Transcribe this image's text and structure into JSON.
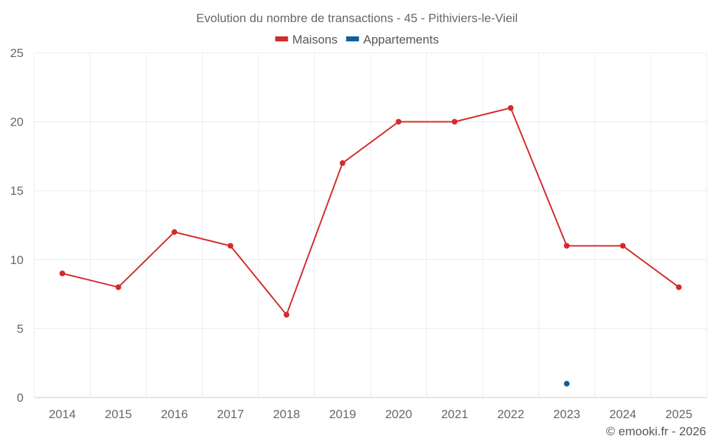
{
  "chart_data": {
    "type": "line",
    "title": "Evolution du nombre de transactions - 45 - Pithiviers-le-Vieil",
    "categories": [
      "2014",
      "2015",
      "2016",
      "2017",
      "2018",
      "2019",
      "2020",
      "2021",
      "2022",
      "2023",
      "2024",
      "2025"
    ],
    "series": [
      {
        "name": "Maisons",
        "color": "#d32a2a",
        "values": [
          9,
          8,
          12,
          11,
          6,
          17,
          20,
          20,
          21,
          11,
          11,
          8
        ]
      },
      {
        "name": "Appartements",
        "color": "#0f5f9e",
        "values": [
          null,
          null,
          null,
          null,
          null,
          null,
          null,
          null,
          null,
          1,
          null,
          null
        ]
      }
    ],
    "y_ticks": [
      0,
      5,
      10,
      15,
      20,
      25
    ],
    "ylim": [
      0,
      25
    ],
    "xlabel": "",
    "ylabel": "",
    "grid": true,
    "legend": "top-center"
  },
  "credit": "© emooki.fr - 2026"
}
